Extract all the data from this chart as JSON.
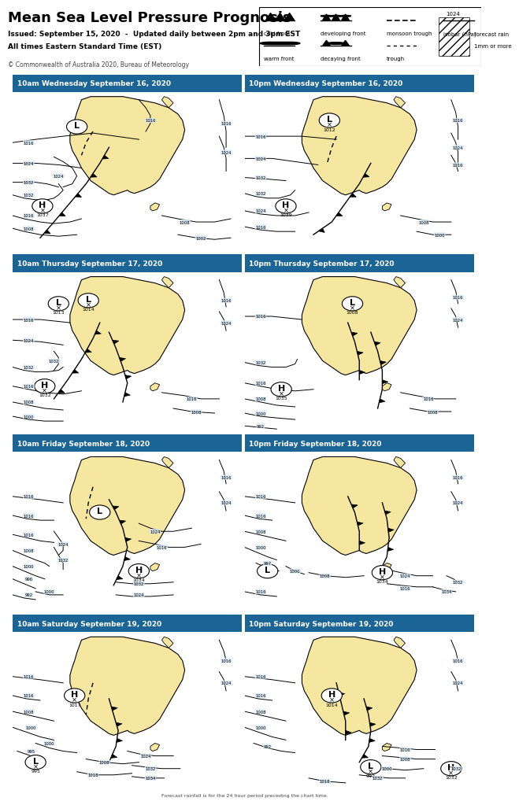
{
  "title": "Mean Sea Level Pressure Prognosis",
  "issued": "Issued: September 15, 2020  -  Updated daily between 2pm and 3pm EST",
  "times": "All times Eastern Standard Time (EST)",
  "copyright": "© Commonwealth of Australia 2020, Bureau of Meteorology",
  "forecast_note": "Forecast rainfall is for the 24 hour period preceding the chart time.",
  "legend_items": [
    {
      "label": "cold front",
      "type": "cold_front"
    },
    {
      "label": "developing front",
      "type": "developing_front"
    },
    {
      "label": "monsoon trough",
      "type": "monsoon_trough"
    },
    {
      "label": "isobar (hPa)",
      "type": "isobar"
    },
    {
      "label": "warm front",
      "type": "warm_front"
    },
    {
      "label": "decaying front",
      "type": "decaying_front"
    },
    {
      "label": "trough",
      "type": "trough"
    },
    {
      "label": "forecast rain\n1mm or more",
      "type": "forecast_rain"
    }
  ],
  "panels": [
    {
      "title": "10am Wednesday September 16, 2020",
      "col": 0,
      "row": 0
    },
    {
      "title": "10pm Wednesday September 16, 2020",
      "col": 1,
      "row": 0
    },
    {
      "title": "10am Thursday September 17, 2020",
      "col": 0,
      "row": 1
    },
    {
      "title": "10pm Thursday September 17, 2020",
      "col": 1,
      "row": 1
    },
    {
      "title": "10am Friday September 18, 2020",
      "col": 0,
      "row": 2
    },
    {
      "title": "10pm Friday September 18, 2020",
      "col": 1,
      "row": 2
    },
    {
      "title": "10am Saturday September 19, 2020",
      "col": 0,
      "row": 3
    },
    {
      "title": "10pm Saturday September 19, 2020",
      "col": 1,
      "row": 3
    }
  ],
  "header_bg": "#1a6496",
  "header_fg": "#ffffff",
  "panel_bg": "#d6e8f5",
  "land_color": "#f5e6a0",
  "fig_bg": "#ffffff",
  "title_fontsize": 13,
  "header_fontsize": 8.5,
  "panel_title_fontsize": 7.5
}
